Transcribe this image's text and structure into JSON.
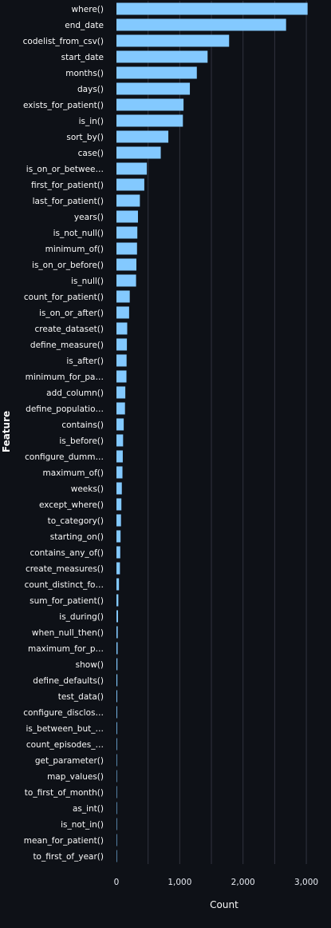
{
  "colors": {
    "background": "#0e1117",
    "bar": "#83c9ff",
    "text": "#fafafa",
    "tick": "#e6eaf1",
    "grid": "#31333f"
  },
  "chart_data": {
    "type": "bar",
    "orientation": "horizontal",
    "xlabel": "Count",
    "ylabel": "Feature",
    "xlim": [
      0,
      3100
    ],
    "xticks": [
      0,
      1000,
      2000,
      3000
    ],
    "xtick_labels": [
      "0",
      "1,000",
      "2,000",
      "3,000"
    ],
    "grid": true,
    "categories": [
      "where()",
      "end_date",
      "codelist_from_csv()",
      "start_date",
      "months()",
      "days()",
      "exists_for_patient()",
      "is_in()",
      "sort_by()",
      "case()",
      "is_on_or_betwee…",
      "first_for_patient()",
      "last_for_patient()",
      "years()",
      "is_not_null()",
      "minimum_of()",
      "is_on_or_before()",
      "is_null()",
      "count_for_patient()",
      "is_on_or_after()",
      "create_dataset()",
      "define_measure()",
      "is_after()",
      "minimum_for_pa…",
      "add_column()",
      "define_populatio…",
      "contains()",
      "is_before()",
      "configure_dumm…",
      "maximum_of()",
      "weeks()",
      "except_where()",
      "to_category()",
      "starting_on()",
      "contains_any_of()",
      "create_measures()",
      "count_distinct_fo…",
      "sum_for_patient()",
      "is_during()",
      "when_null_then()",
      "maximum_for_p…",
      "show()",
      "define_defaults()",
      "test_data()",
      "configure_disclos…",
      "is_between_but_…",
      "count_episodes_…",
      "get_parameter()",
      "map_values()",
      "to_first_of_month()",
      "as_int()",
      "is_not_in()",
      "mean_for_patient()",
      "to_first_of_year()"
    ],
    "values": [
      3020,
      2680,
      1780,
      1440,
      1270,
      1160,
      1060,
      1050,
      820,
      700,
      480,
      440,
      370,
      340,
      330,
      325,
      315,
      310,
      210,
      200,
      170,
      165,
      160,
      158,
      140,
      135,
      115,
      105,
      100,
      95,
      85,
      78,
      72,
      65,
      60,
      55,
      40,
      30,
      25,
      20,
      18,
      15,
      14,
      12,
      11,
      10,
      9,
      8,
      6,
      5,
      4,
      3,
      2,
      2
    ]
  }
}
